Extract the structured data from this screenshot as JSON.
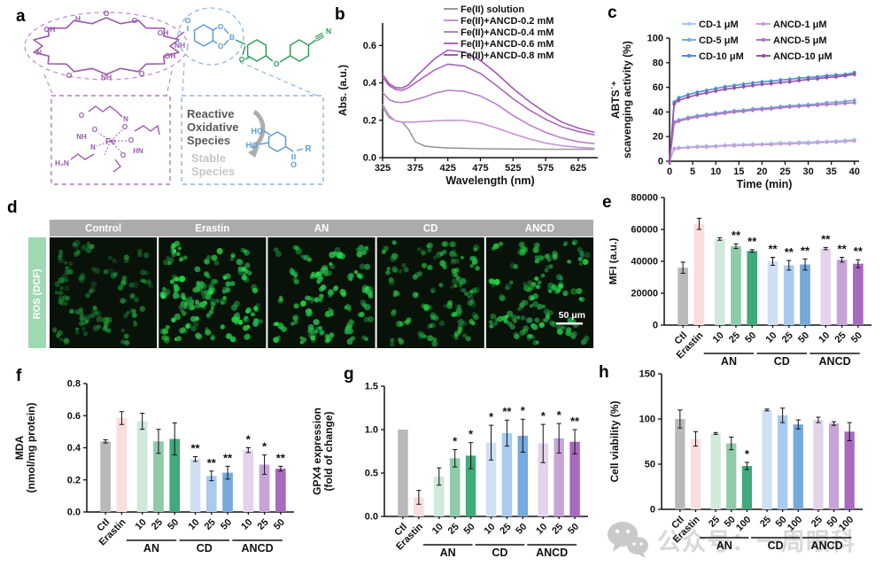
{
  "panels": {
    "a": {
      "label": "a",
      "atoms": {
        "o": "O",
        "oh": "OH",
        "h": "H",
        "n": "N",
        "nh": "NH",
        "hn": "HN",
        "h2n": "H₂N",
        "fe": "Fe",
        "b": "B",
        "ho": "HO",
        "r": "R"
      },
      "ros_text": {
        "l1": "Reactive",
        "l2": "Oxidative",
        "l3": "Species"
      },
      "stable_text": {
        "l1": "Stable",
        "l2": "Species"
      }
    },
    "b": {
      "label": "b"
    },
    "c": {
      "label": "c"
    },
    "d": {
      "label": "d",
      "row_label": "ROS (DCF)",
      "row_label_color": "#9fd9b4",
      "header_color": "#ababab",
      "columns": [
        "Control",
        "Erastin",
        "AN",
        "CD",
        "ANCD"
      ],
      "scalebar": "50 μm",
      "cell_params": [
        {
          "seed": 7,
          "count": 60,
          "bright": 0.5
        },
        {
          "seed": 13,
          "count": 75,
          "bright": 1.0
        },
        {
          "seed": 29,
          "count": 68,
          "bright": 0.95
        },
        {
          "seed": 41,
          "count": 62,
          "bright": 0.7
        },
        {
          "seed": 53,
          "count": 68,
          "bright": 0.85
        }
      ]
    },
    "e": {
      "label": "e"
    },
    "f": {
      "label": "f"
    },
    "g": {
      "label": "g"
    },
    "h": {
      "label": "h"
    }
  },
  "watermark": {
    "text": "公众号：一周眼科"
  },
  "chart_data": [
    {
      "id": "b",
      "type": "line",
      "xlabel": "Wavelength (nm)",
      "ylabel": "Abs. (a.u.)",
      "xlim": [
        325,
        655
      ],
      "xticks": [
        325,
        375,
        425,
        475,
        525,
        575,
        625
      ],
      "ylim": [
        0,
        0.72
      ],
      "yticks": [
        0,
        0.2,
        0.4,
        0.6
      ],
      "ytick_labels": [
        "0.0",
        "0.2",
        "0.4",
        "0.6"
      ],
      "markers": false,
      "err": 0,
      "series": [
        {
          "name": "Fe(II) solution",
          "color": "#999999",
          "x": [
            325,
            335,
            345,
            355,
            365,
            375,
            390,
            405,
            425,
            450,
            475,
            500,
            525,
            550,
            575,
            600,
            625,
            650
          ],
          "y": [
            0.27,
            0.215,
            0.197,
            0.19,
            0.15,
            0.085,
            0.062,
            0.056,
            0.052,
            0.05,
            0.048,
            0.047,
            0.046,
            0.046,
            0.045,
            0.045,
            0.045,
            0.045
          ]
        },
        {
          "name": "Fe(II)+ANCD-0.2 mM",
          "color": "#c393d3",
          "x": [
            325,
            335,
            345,
            355,
            365,
            375,
            390,
            405,
            425,
            450,
            475,
            500,
            525,
            550,
            575,
            600,
            625,
            650
          ],
          "y": [
            0.285,
            0.225,
            0.196,
            0.19,
            0.19,
            0.191,
            0.194,
            0.197,
            0.2,
            0.199,
            0.185,
            0.158,
            0.128,
            0.1,
            0.078,
            0.064,
            0.055,
            0.05
          ]
        },
        {
          "name": "Fe(II)+ANCD-0.4 mM",
          "color": "#b77fc9",
          "x": [
            325,
            335,
            345,
            355,
            365,
            375,
            390,
            405,
            425,
            450,
            475,
            500,
            525,
            550,
            575,
            600,
            625,
            650
          ],
          "y": [
            0.35,
            0.31,
            0.297,
            0.295,
            0.3,
            0.31,
            0.325,
            0.345,
            0.36,
            0.355,
            0.33,
            0.285,
            0.225,
            0.175,
            0.135,
            0.105,
            0.085,
            0.075
          ]
        },
        {
          "name": "Fe(II)+ANCD-0.6 mM",
          "color": "#aa66bd",
          "x": [
            325,
            335,
            345,
            355,
            365,
            375,
            390,
            405,
            425,
            450,
            475,
            500,
            525,
            550,
            575,
            600,
            625,
            650
          ],
          "y": [
            0.43,
            0.385,
            0.365,
            0.36,
            0.375,
            0.4,
            0.435,
            0.47,
            0.5,
            0.49,
            0.45,
            0.385,
            0.315,
            0.255,
            0.205,
            0.165,
            0.14,
            0.122
          ]
        },
        {
          "name": "Fe(II)+ANCD-0.8 mM",
          "color": "#a259b6",
          "x": [
            325,
            335,
            345,
            355,
            365,
            375,
            390,
            405,
            425,
            450,
            475,
            500,
            525,
            550,
            575,
            600,
            625,
            650
          ],
          "y": [
            0.445,
            0.395,
            0.375,
            0.372,
            0.39,
            0.43,
            0.48,
            0.53,
            0.575,
            0.565,
            0.52,
            0.45,
            0.37,
            0.3,
            0.24,
            0.19,
            0.158,
            0.135
          ]
        }
      ]
    },
    {
      "id": "c",
      "type": "line",
      "xlabel": "Time (min)",
      "ylabel_lines": [
        "ABTS˙⁺",
        "scavenging activity (%)"
      ],
      "xlim": [
        0,
        41
      ],
      "xticks": [
        0,
        5,
        10,
        15,
        20,
        25,
        30,
        35,
        40
      ],
      "ylim": [
        0,
        100
      ],
      "yticks": [
        0,
        20,
        40,
        60,
        80,
        100
      ],
      "ytick_labels": [
        "0",
        "20",
        "40",
        "60",
        "80",
        "100"
      ],
      "markers": true,
      "err": 1.8,
      "series": [
        {
          "name": "CD-1 μM",
          "color": "#a7c9ee",
          "x": [
            0,
            1,
            2,
            4,
            6,
            8,
            10,
            12,
            14,
            16,
            18,
            20,
            22,
            24,
            26,
            28,
            30,
            32,
            34,
            36,
            38,
            40
          ],
          "y": [
            0,
            10.5,
            11,
            11.5,
            12,
            12.5,
            12.5,
            13,
            13.5,
            13.5,
            14,
            14,
            14.5,
            15,
            15,
            15.5,
            15.5,
            16,
            16,
            16.5,
            17,
            17.5
          ]
        },
        {
          "name": "CD-5 μM",
          "color": "#7aaade",
          "x": [
            0,
            1,
            2,
            4,
            6,
            8,
            10,
            12,
            14,
            16,
            18,
            20,
            22,
            24,
            26,
            28,
            30,
            32,
            34,
            36,
            38,
            40
          ],
          "y": [
            0,
            32,
            33.5,
            35.5,
            37,
            38,
            39,
            40,
            41,
            41.5,
            42.5,
            43,
            43.5,
            44.5,
            45,
            45.5,
            46,
            46.5,
            47.5,
            48,
            48.5,
            49.5
          ]
        },
        {
          "name": "CD-10 μM",
          "color": "#4f8fd0",
          "x": [
            0,
            1,
            2,
            4,
            6,
            8,
            10,
            12,
            14,
            16,
            18,
            20,
            22,
            24,
            26,
            28,
            30,
            32,
            34,
            36,
            38,
            40
          ],
          "y": [
            0,
            48,
            51.5,
            54,
            56,
            57.5,
            59,
            60.5,
            61.5,
            62.5,
            63.5,
            64.5,
            65,
            66,
            66.5,
            67.5,
            68,
            68.5,
            69.5,
            70,
            70.5,
            72
          ]
        },
        {
          "name": "ANCD-1 μM",
          "color": "#c79fd6",
          "x": [
            0,
            1,
            2,
            4,
            6,
            8,
            10,
            12,
            14,
            16,
            18,
            20,
            22,
            24,
            26,
            28,
            30,
            32,
            34,
            36,
            38,
            40
          ],
          "y": [
            0,
            10,
            10.5,
            11,
            11.5,
            11.5,
            12,
            12.5,
            12.5,
            13,
            13,
            13.5,
            13.5,
            14,
            14,
            14.5,
            14.5,
            15,
            15.5,
            15.5,
            16,
            16.5
          ]
        },
        {
          "name": "ANCD-5 μM",
          "color": "#ad77c4",
          "x": [
            0,
            1,
            2,
            4,
            6,
            8,
            10,
            12,
            14,
            16,
            18,
            20,
            22,
            24,
            26,
            28,
            30,
            32,
            34,
            36,
            38,
            40
          ],
          "y": [
            0,
            31,
            32.5,
            34.5,
            36,
            37,
            38,
            39,
            40,
            40.5,
            41.5,
            42,
            42.5,
            43.5,
            44,
            44.5,
            45,
            45.5,
            46,
            46.5,
            47,
            47.5
          ]
        },
        {
          "name": "ANCD-10 μM",
          "color": "#9550a8",
          "x": [
            0,
            1,
            2,
            4,
            6,
            8,
            10,
            12,
            14,
            16,
            18,
            20,
            22,
            24,
            26,
            28,
            30,
            32,
            34,
            36,
            38,
            40
          ],
          "y": [
            0,
            46.5,
            49.5,
            52,
            54,
            55.5,
            57,
            58.5,
            59.5,
            60.5,
            61.5,
            62.5,
            63,
            64,
            64.5,
            65.5,
            66.5,
            67,
            68,
            68.5,
            69.5,
            70.5
          ]
        }
      ]
    },
    {
      "id": "e",
      "type": "bar",
      "ylabel": "MFI (a.u.)",
      "ylim": [
        0,
        80000
      ],
      "yticks": [
        0,
        20000,
        40000,
        60000,
        80000
      ],
      "ytick_labels": [
        "0",
        "20000",
        "40000",
        "60000",
        "80000"
      ],
      "categories": [
        "Ctl",
        "Erastin",
        "10",
        "25",
        "50",
        "10",
        "25",
        "50",
        "10",
        "25",
        "50"
      ],
      "values": [
        36000,
        63500,
        54000,
        49500,
        46500,
        40000,
        37500,
        38000,
        48000,
        41000,
        38500
      ],
      "errors": [
        3500,
        3500,
        800,
        1500,
        800,
        2500,
        3000,
        3500,
        700,
        1500,
        2500
      ],
      "sig": [
        "",
        "",
        "",
        "**",
        "**",
        "**",
        "**",
        "**",
        "**",
        "**",
        "**"
      ],
      "colors": [
        "#b9b9b9",
        "#f9dedd",
        "#cfe9db",
        "#8fcaa9",
        "#41a97b",
        "#cfe0f4",
        "#a9cbee",
        "#76a9dc",
        "#e3d3eb",
        "#c7a4d7",
        "#a86abc"
      ],
      "groups": [
        {
          "label": "AN",
          "from": 2,
          "to": 4
        },
        {
          "label": "CD",
          "from": 5,
          "to": 7
        },
        {
          "label": "ANCD",
          "from": 8,
          "to": 10
        }
      ]
    },
    {
      "id": "f",
      "type": "bar",
      "ylabel_lines": [
        "MDA",
        "(nmol/mg protein)"
      ],
      "ylim": [
        0,
        0.8
      ],
      "yticks": [
        0,
        0.2,
        0.4,
        0.6,
        0.8
      ],
      "ytick_labels": [
        "0.0",
        "0.2",
        "0.4",
        "0.6",
        "0.8"
      ],
      "categories": [
        "Ctl",
        "Erastin",
        "10",
        "25",
        "50",
        "10",
        "25",
        "50",
        "10",
        "25",
        "50"
      ],
      "values": [
        0.44,
        0.585,
        0.565,
        0.44,
        0.455,
        0.33,
        0.225,
        0.245,
        0.385,
        0.295,
        0.27
      ],
      "errors": [
        0.01,
        0.04,
        0.05,
        0.075,
        0.1,
        0.015,
        0.03,
        0.04,
        0.015,
        0.06,
        0.015
      ],
      "sig": [
        "",
        "",
        "",
        "",
        "",
        "**",
        "**",
        "**",
        "*",
        "*",
        "**"
      ],
      "colors": [
        "#b9b9b9",
        "#f9dedd",
        "#cfe9db",
        "#8fcaa9",
        "#41a97b",
        "#cfe0f4",
        "#a9cbee",
        "#76a9dc",
        "#e3d3eb",
        "#c7a4d7",
        "#a86abc"
      ],
      "groups": [
        {
          "label": "AN",
          "from": 2,
          "to": 4
        },
        {
          "label": "CD",
          "from": 5,
          "to": 7
        },
        {
          "label": "ANCD",
          "from": 8,
          "to": 10
        }
      ]
    },
    {
      "id": "g",
      "type": "bar",
      "ylabel_lines": [
        "GPX4 expression",
        "(fold of change)"
      ],
      "ylim": [
        0,
        1.5
      ],
      "yticks": [
        0,
        0.5,
        1.0,
        1.5
      ],
      "ytick_labels": [
        "0.0",
        "0.5",
        "1.0",
        "1.5"
      ],
      "categories": [
        "Ctl",
        "Erastin",
        "10",
        "25",
        "50",
        "10",
        "25",
        "50",
        "10",
        "25",
        "50"
      ],
      "values": [
        1.0,
        0.22,
        0.46,
        0.67,
        0.7,
        0.85,
        0.96,
        0.93,
        0.84,
        0.9,
        0.86
      ],
      "errors": [
        0,
        0.08,
        0.1,
        0.1,
        0.15,
        0.2,
        0.15,
        0.19,
        0.22,
        0.17,
        0.14
      ],
      "sig": [
        "",
        "",
        "",
        "*",
        "*",
        "*",
        "**",
        "*",
        "*",
        "*",
        "**"
      ],
      "colors": [
        "#b9b9b9",
        "#f9dedd",
        "#cfe9db",
        "#8fcaa9",
        "#41a97b",
        "#cfe0f4",
        "#a9cbee",
        "#76a9dc",
        "#e3d3eb",
        "#c7a4d7",
        "#a86abc"
      ],
      "groups": [
        {
          "label": "AN",
          "from": 2,
          "to": 4
        },
        {
          "label": "CD",
          "from": 5,
          "to": 7
        },
        {
          "label": "ANCD",
          "from": 8,
          "to": 10
        }
      ]
    },
    {
      "id": "h",
      "type": "bar",
      "ylabel": "Cell viability (%)",
      "ylim": [
        0,
        150
      ],
      "yticks": [
        0,
        50,
        100,
        150
      ],
      "ytick_labels": [
        "0",
        "50",
        "100",
        "150"
      ],
      "categories": [
        "Ctl",
        "Erastin",
        "25",
        "50",
        "100",
        "25",
        "50",
        "100",
        "25",
        "50",
        "100"
      ],
      "values": [
        100,
        78,
        84,
        73,
        48,
        110,
        104,
        94,
        99,
        95,
        86
      ],
      "errors": [
        10,
        8,
        1,
        7,
        4,
        1,
        8,
        5,
        3,
        2,
        10
      ],
      "sig": [
        "",
        "",
        "",
        "",
        "*",
        "",
        "",
        "",
        "",
        "",
        ""
      ],
      "colors": [
        "#b9b9b9",
        "#f9dedd",
        "#cfe9db",
        "#8fcaa9",
        "#41a97b",
        "#cfe0f4",
        "#a9cbee",
        "#76a9dc",
        "#e3d3eb",
        "#c7a4d7",
        "#a86abc"
      ],
      "groups": [
        {
          "label": "AN",
          "from": 2,
          "to": 4
        },
        {
          "label": "CD",
          "from": 5,
          "to": 7
        },
        {
          "label": "ANCD",
          "from": 8,
          "to": 10
        }
      ]
    }
  ]
}
